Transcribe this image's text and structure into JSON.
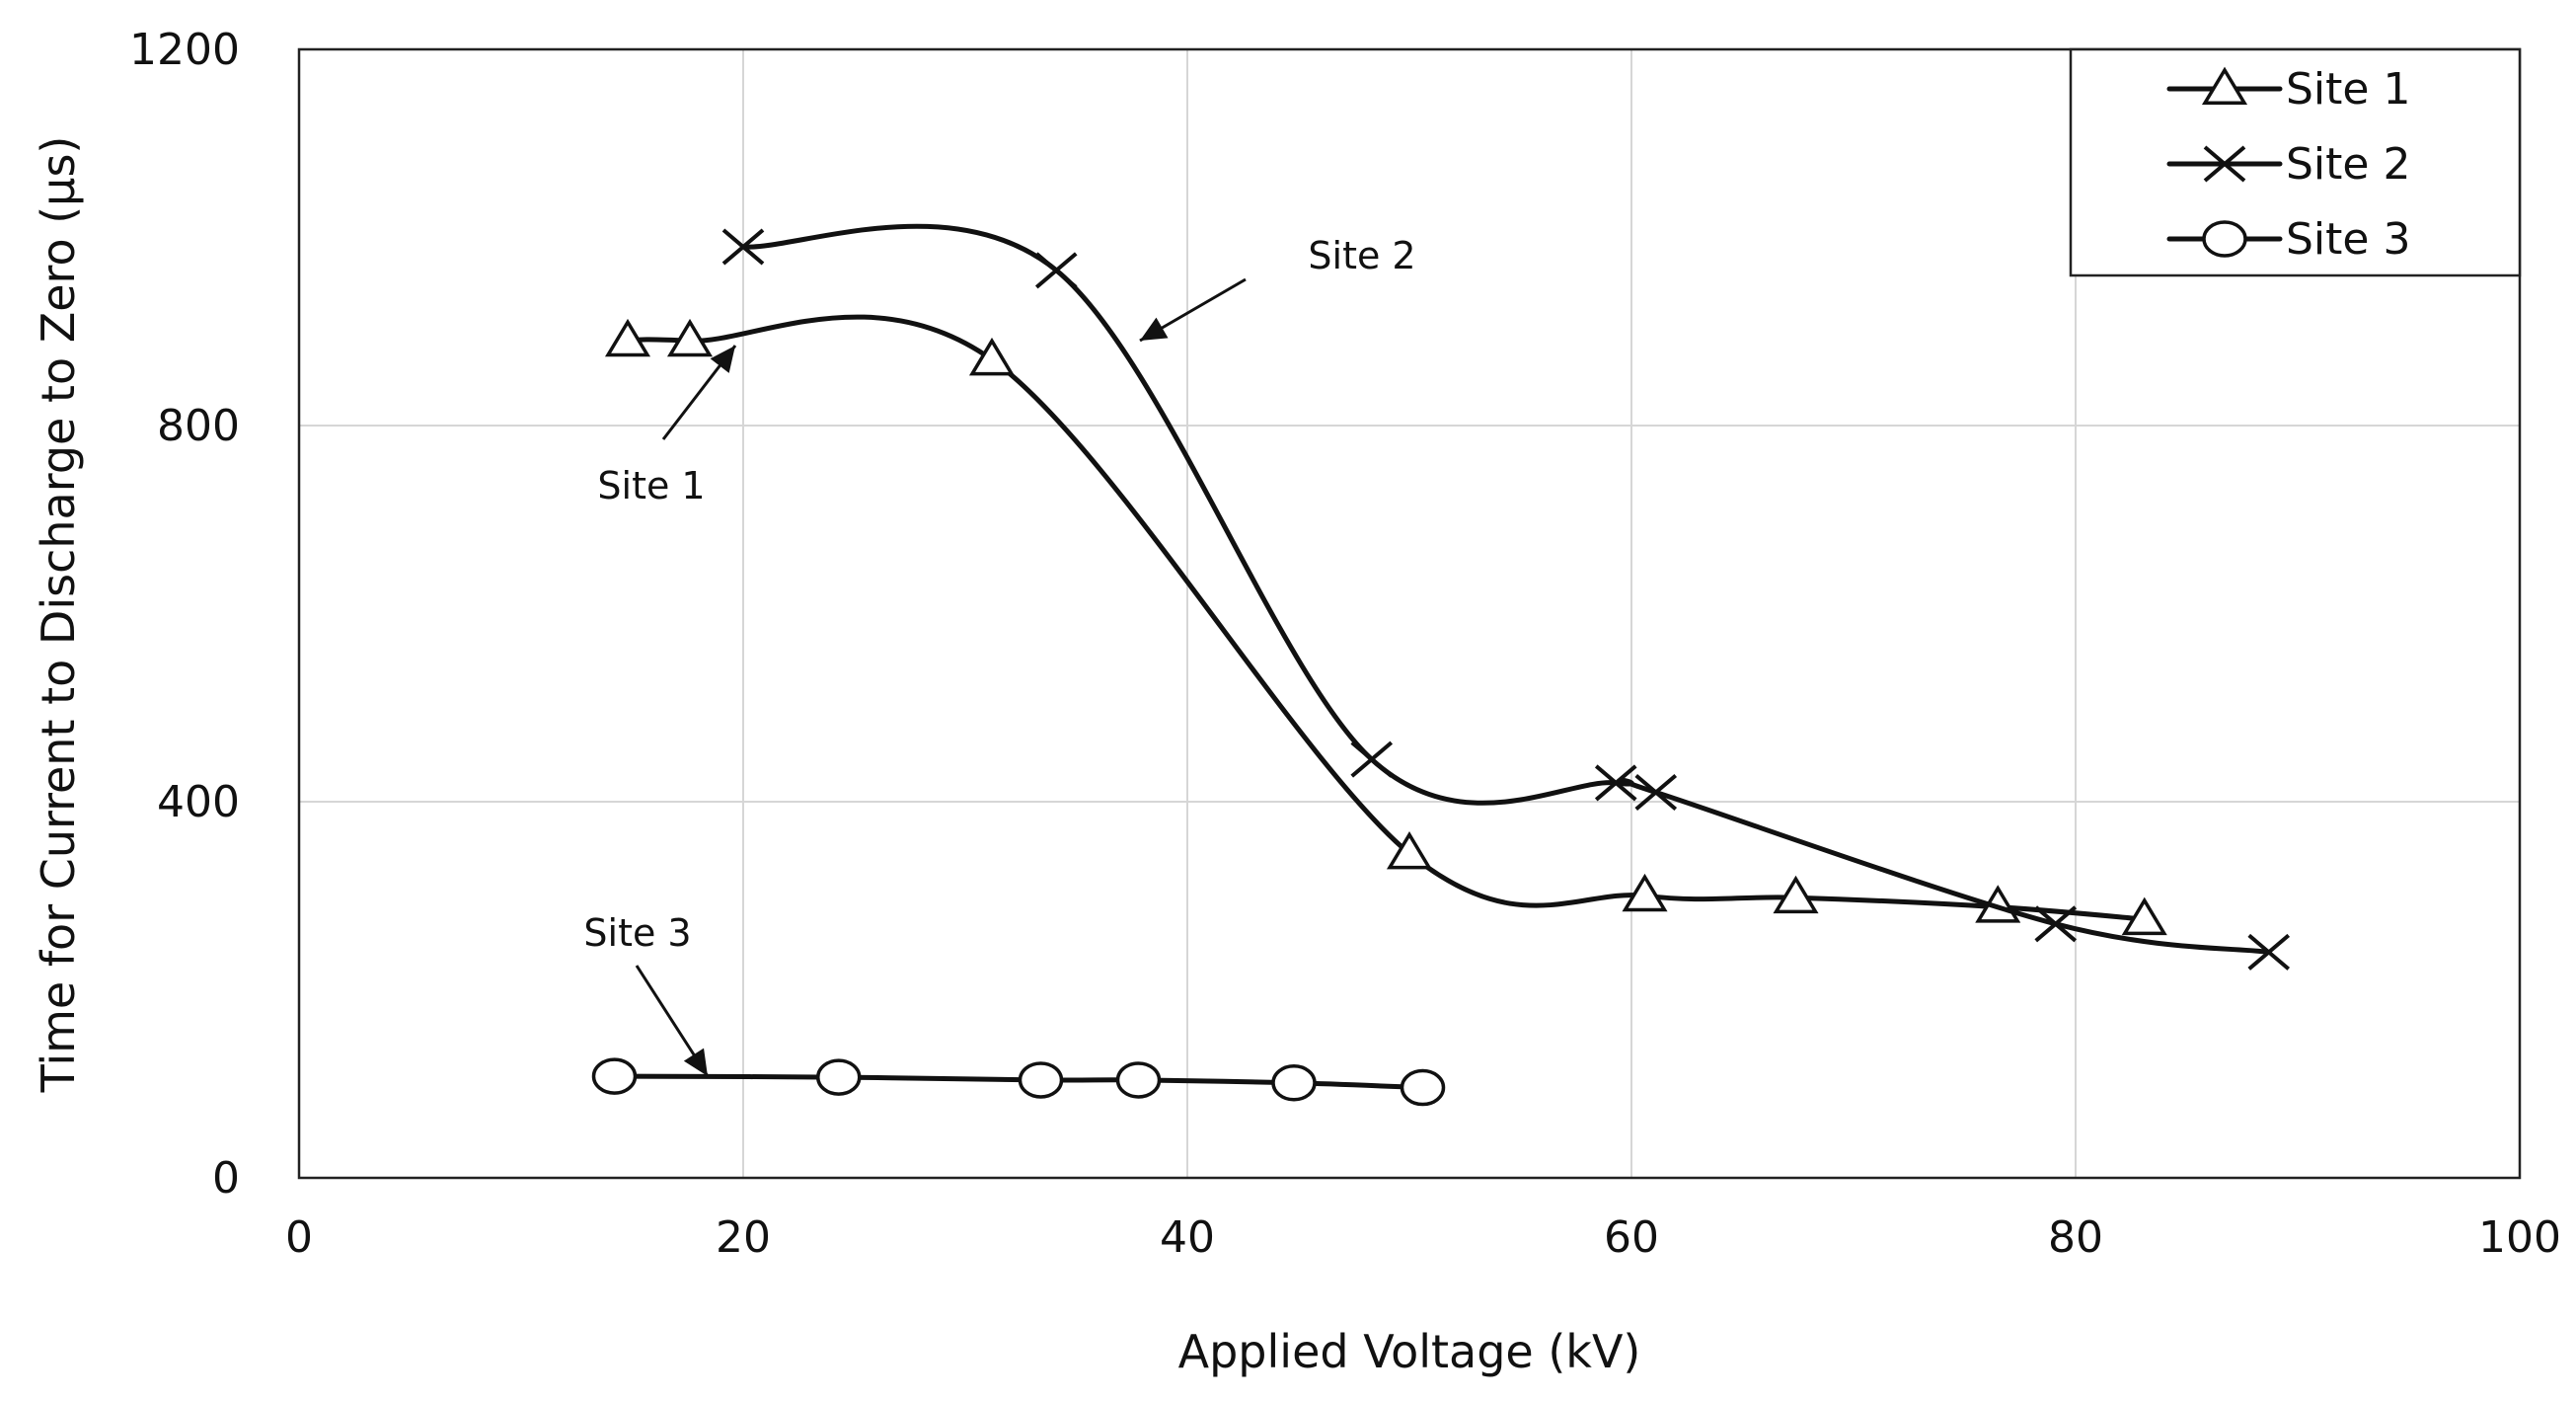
{
  "chart_data": {
    "type": "line",
    "title": "",
    "xlabel": "Applied Voltage (kV)",
    "ylabel": "Time for Current to Discharge to Zero (µs)",
    "xlim": [
      0,
      100
    ],
    "ylim": [
      0,
      1200
    ],
    "xticks": [
      0,
      20,
      40,
      60,
      80,
      100
    ],
    "yticks": [
      0,
      400,
      800,
      1200
    ],
    "xtick_labels": [
      "0",
      "20",
      "40",
      "60",
      "80",
      "100"
    ],
    "ytick_labels": [
      "0",
      "400",
      "800",
      "1200"
    ],
    "grid": true,
    "legend_position": "top-right",
    "series": [
      {
        "name": "Site 1",
        "marker": "triangle",
        "x": [
          14.8,
          17.6,
          31.2,
          50.0,
          60.6,
          67.4,
          76.5,
          83.1
        ],
        "y": [
          890,
          890,
          870,
          345,
          300,
          298,
          288,
          275
        ]
      },
      {
        "name": "Site 2",
        "marker": "x",
        "x": [
          20.0,
          34.1,
          48.3,
          59.3,
          61.1,
          79.1,
          88.7
        ],
        "y": [
          990,
          965,
          445,
          420,
          410,
          270,
          240
        ]
      },
      {
        "name": "Site 3",
        "marker": "circle",
        "x": [
          14.2,
          24.3,
          33.4,
          37.8,
          44.8,
          50.6
        ],
        "y": [
          108,
          107,
          104,
          104,
          101,
          96
        ]
      }
    ],
    "annotations": [
      {
        "text": "Site 1",
        "target_series": "Site 1"
      },
      {
        "text": "Site 2",
        "target_series": "Site 2"
      },
      {
        "text": "Site 3",
        "target_series": "Site 3"
      }
    ]
  }
}
